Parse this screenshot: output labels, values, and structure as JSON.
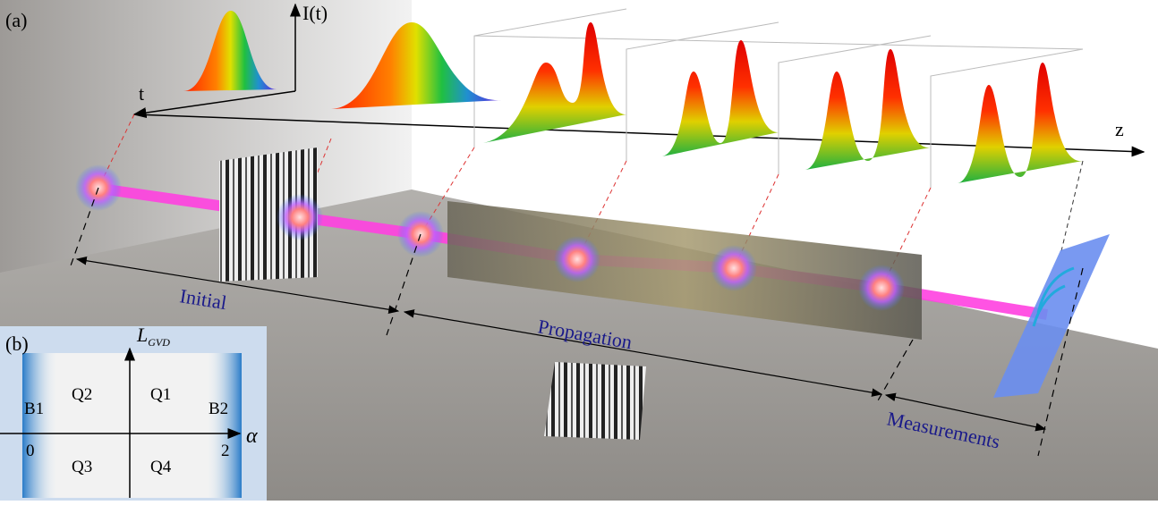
{
  "panel_a": {
    "label": "(a)",
    "axes": {
      "intensity": "I(t)",
      "time": "t",
      "propagation": "z"
    },
    "stages": [
      "Initial",
      "Propagation",
      "Measurements"
    ]
  },
  "panel_b": {
    "label": "(b)",
    "y_axis_label": "L",
    "y_axis_subscript": "GVD",
    "x_axis_label": "α",
    "regions": [
      "B1",
      "Q2",
      "Q1",
      "B2",
      "Q3",
      "Q4"
    ],
    "x_tick_labels": [
      "0",
      "2"
    ]
  }
}
